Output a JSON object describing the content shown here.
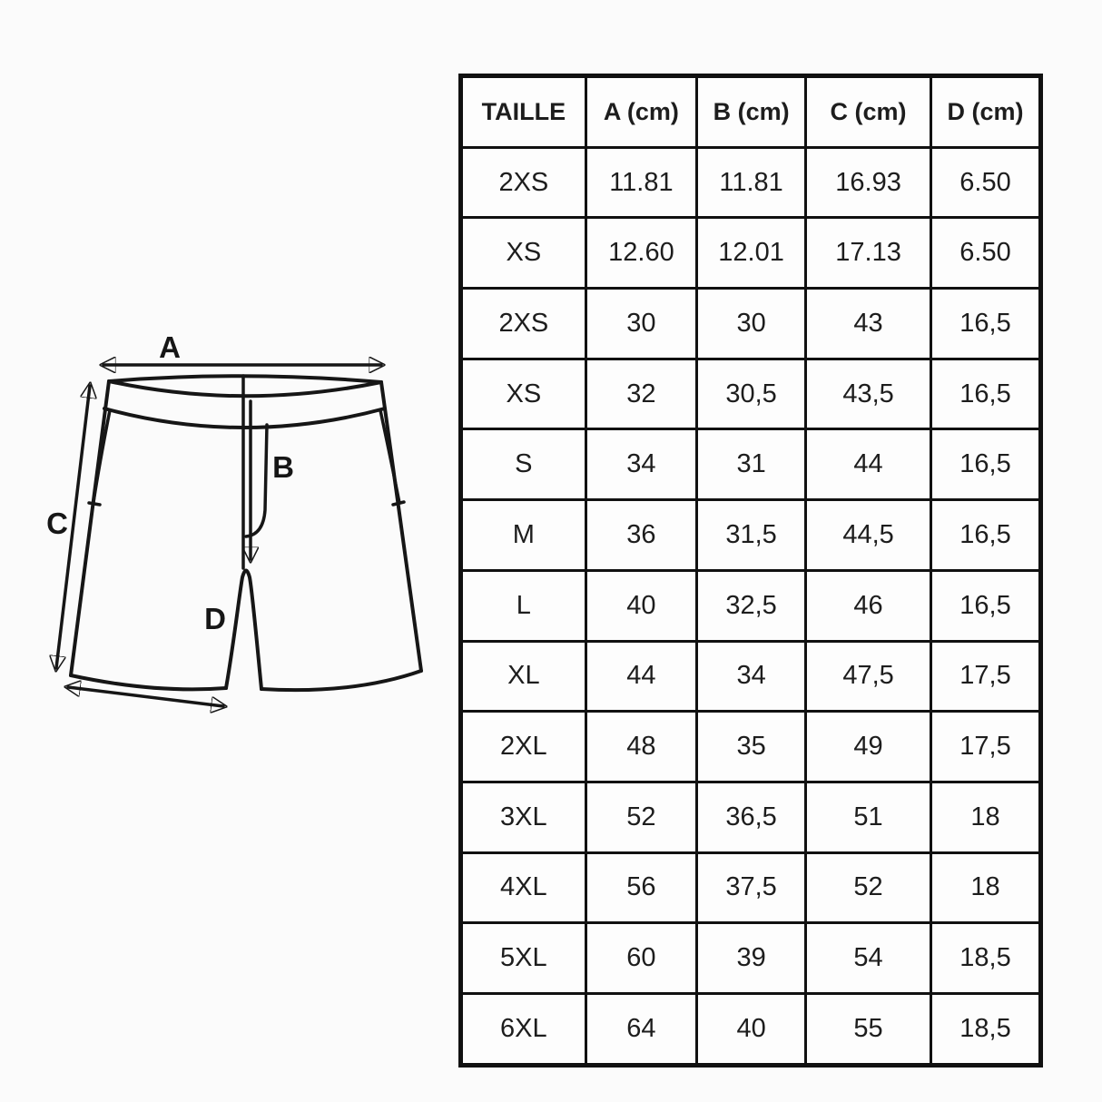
{
  "colors": {
    "background": "#fbfbfb",
    "line": "#161616",
    "table_border": "#111111",
    "text": "#1d1d1d"
  },
  "diagram": {
    "description": "technical flat sketch of shorts with measurement arrows",
    "labels": {
      "a": "A",
      "b": "B",
      "c": "C",
      "d": "D"
    }
  },
  "table": {
    "headers": [
      "TAILLE",
      "A (cm)",
      "B (cm)",
      "C (cm)",
      "D (cm)"
    ],
    "rows": [
      [
        "2XS",
        "11.81",
        "11.81",
        "16.93",
        "6.50"
      ],
      [
        "XS",
        "12.60",
        "12.01",
        "17.13",
        "6.50"
      ],
      [
        "2XS",
        "30",
        "30",
        "43",
        "16,5"
      ],
      [
        "XS",
        "32",
        "30,5",
        "43,5",
        "16,5"
      ],
      [
        "S",
        "34",
        "31",
        "44",
        "16,5"
      ],
      [
        "M",
        "36",
        "31,5",
        "44,5",
        "16,5"
      ],
      [
        "L",
        "40",
        "32,5",
        "46",
        "16,5"
      ],
      [
        "XL",
        "44",
        "34",
        "47,5",
        "17,5"
      ],
      [
        "2XL",
        "48",
        "35",
        "49",
        "17,5"
      ],
      [
        "3XL",
        "52",
        "36,5",
        "51",
        "18"
      ],
      [
        "4XL",
        "56",
        "37,5",
        "52",
        "18"
      ],
      [
        "5XL",
        "60",
        "39",
        "54",
        "18,5"
      ],
      [
        "6XL",
        "64",
        "40",
        "55",
        "18,5"
      ]
    ]
  }
}
